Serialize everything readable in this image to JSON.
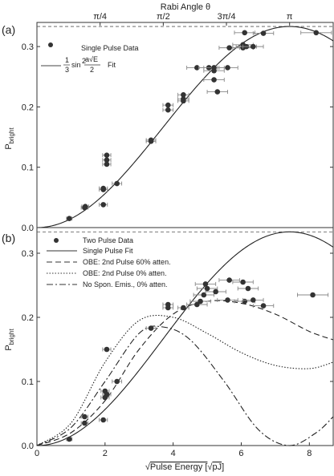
{
  "chart_data": [
    {
      "type": "scatter",
      "panel_label": "(a)",
      "top_axis": {
        "label": "Rabi Angle θ",
        "ticks": [
          {
            "x": 1.855,
            "label": "π/4"
          },
          {
            "x": 3.71,
            "label": "π/2"
          },
          {
            "x": 5.565,
            "label": "3π/4"
          },
          {
            "x": 7.42,
            "label": "π"
          }
        ]
      },
      "ylabel": "P",
      "ylabel_sub": "bright",
      "xlim": [
        0,
        8.7
      ],
      "ylim": [
        0,
        0.34
      ],
      "yticks": [
        0.0,
        0.1,
        0.2,
        0.3
      ],
      "yticks_labels": [
        "0.0",
        "0.1",
        "0.2",
        "0.3"
      ],
      "reference_line": {
        "y": 0.3333,
        "style": "dashed"
      },
      "legend": [
        {
          "label": "Single Pulse Data",
          "marker": "circle"
        },
        {
          "label_fraction_num": "1",
          "label_fraction_den": "3",
          "label_sin": "sin",
          "label_exp": "2",
          "label_arg_num": "a√E",
          "label_arg_den": "2",
          "label_tail": "Fit",
          "style": "solid"
        }
      ],
      "series": [
        {
          "name": "Single Pulse Data",
          "points": [
            {
              "x": 0.95,
              "y": 0.015,
              "xerr": 0.08
            },
            {
              "x": 1.4,
              "y": 0.033,
              "xerr": 0.1
            },
            {
              "x": 1.42,
              "y": 0.035,
              "xerr": 0.1
            },
            {
              "x": 1.95,
              "y": 0.065,
              "xerr": 0.12
            },
            {
              "x": 1.95,
              "y": 0.063,
              "xerr": 0.12
            },
            {
              "x": 1.95,
              "y": 0.038,
              "xerr": 0.12
            },
            {
              "x": 2.05,
              "y": 0.105,
              "xerr": 0.12
            },
            {
              "x": 2.05,
              "y": 0.12,
              "xerr": 0.12
            },
            {
              "x": 2.05,
              "y": 0.112,
              "xerr": 0.12
            },
            {
              "x": 2.35,
              "y": 0.073,
              "xerr": 0.14
            },
            {
              "x": 3.35,
              "y": 0.145,
              "xerr": 0.14
            },
            {
              "x": 3.35,
              "y": 0.143,
              "xerr": 0.14
            },
            {
              "x": 3.85,
              "y": 0.195,
              "xerr": 0.15
            },
            {
              "x": 3.85,
              "y": 0.203,
              "xerr": 0.15
            },
            {
              "x": 4.3,
              "y": 0.22,
              "xerr": 0.16
            },
            {
              "x": 4.3,
              "y": 0.213,
              "xerr": 0.16
            },
            {
              "x": 4.3,
              "y": 0.21,
              "xerr": 0.16
            },
            {
              "x": 4.7,
              "y": 0.265,
              "xerr": 0.3
            },
            {
              "x": 5.05,
              "y": 0.265,
              "xerr": 0.3
            },
            {
              "x": 5.2,
              "y": 0.265,
              "xerr": 0.3
            },
            {
              "x": 5.2,
              "y": 0.26,
              "xerr": 0.3
            },
            {
              "x": 5.2,
              "y": 0.245,
              "xerr": 0.3
            },
            {
              "x": 5.3,
              "y": 0.225,
              "xerr": 0.3
            },
            {
              "x": 5.6,
              "y": 0.265,
              "xerr": 0.3
            },
            {
              "x": 5.65,
              "y": 0.298,
              "xerr": 0.3
            },
            {
              "x": 6.05,
              "y": 0.298,
              "xerr": 0.3
            },
            {
              "x": 6.05,
              "y": 0.303,
              "xerr": 0.3
            },
            {
              "x": 6.15,
              "y": 0.3,
              "xerr": 0.3
            },
            {
              "x": 6.35,
              "y": 0.3,
              "xerr": 0.3
            },
            {
              "x": 6.1,
              "y": 0.323,
              "xerr": 0.3
            },
            {
              "x": 6.65,
              "y": 0.322,
              "xerr": 0.3
            },
            {
              "x": 8.2,
              "y": 0.323,
              "xerr": 0.45
            }
          ]
        },
        {
          "name": "Fit",
          "function": "(1/3) sin^2(a x / 2)",
          "a": 0.4234
        }
      ]
    },
    {
      "type": "line",
      "panel_label": "(b)",
      "xlabel": "√Pulse Energy [√pJ]",
      "xlabel_parts": {
        "root": "√",
        "main": "Pulse Energy [",
        "unit_root": "√",
        "unit": "pJ",
        "close": "]"
      },
      "ylabel": "P",
      "ylabel_sub": "bright",
      "xlim": [
        0,
        8.7
      ],
      "ylim": [
        0,
        0.34
      ],
      "xticks": [
        0,
        2,
        4,
        6,
        8
      ],
      "xticks_labels": [
        "0",
        "2",
        "4",
        "6",
        "8"
      ],
      "yticks": [
        0.0,
        0.1,
        0.2,
        0.3
      ],
      "yticks_labels": [
        "0.0",
        "0.1",
        "0.2",
        "0.3"
      ],
      "reference_line": {
        "y": 0.3333,
        "style": "dashed"
      },
      "legend": [
        {
          "label": "Two Pulse Data",
          "marker": "circle"
        },
        {
          "label": "Single Pulse Fit",
          "style": "solid"
        },
        {
          "label": "OBE: 2nd Pulse 60% atten.",
          "style": "dashed"
        },
        {
          "label": "OBE: 2nd Pulse 0% atten.",
          "style": "dotted"
        },
        {
          "label": "No Spon. Emis., 0% atten.",
          "style": "dashdot"
        }
      ],
      "series": [
        {
          "name": "Two Pulse Data",
          "points": [
            {
              "x": 0.95,
              "y": 0.01,
              "xerr": 0.08
            },
            {
              "x": 1.4,
              "y": 0.045,
              "xerr": 0.1
            },
            {
              "x": 1.4,
              "y": 0.035,
              "xerr": 0.1
            },
            {
              "x": 1.95,
              "y": 0.04,
              "xerr": 0.12
            },
            {
              "x": 2.0,
              "y": 0.075,
              "xerr": 0.12
            },
            {
              "x": 2.0,
              "y": 0.085,
              "xerr": 0.12
            },
            {
              "x": 2.05,
              "y": 0.08,
              "xerr": 0.12
            },
            {
              "x": 2.35,
              "y": 0.1,
              "xerr": 0.14
            },
            {
              "x": 2.05,
              "y": 0.15,
              "xerr": 0.12
            },
            {
              "x": 3.35,
              "y": 0.183,
              "xerr": 0.14
            },
            {
              "x": 3.85,
              "y": 0.215,
              "xerr": 0.15
            },
            {
              "x": 3.85,
              "y": 0.22,
              "xerr": 0.15
            },
            {
              "x": 4.3,
              "y": 0.215,
              "xerr": 0.16
            },
            {
              "x": 4.7,
              "y": 0.22,
              "xerr": 0.3
            },
            {
              "x": 4.8,
              "y": 0.225,
              "xerr": 0.3
            },
            {
              "x": 4.9,
              "y": 0.235,
              "xerr": 0.3
            },
            {
              "x": 4.95,
              "y": 0.252,
              "xerr": 0.3
            },
            {
              "x": 5.0,
              "y": 0.245,
              "xerr": 0.3
            },
            {
              "x": 5.25,
              "y": 0.24,
              "xerr": 0.3
            },
            {
              "x": 5.6,
              "y": 0.227,
              "xerr": 0.3
            },
            {
              "x": 5.65,
              "y": 0.258,
              "xerr": 0.3
            },
            {
              "x": 6.05,
              "y": 0.255,
              "xerr": 0.3
            },
            {
              "x": 6.1,
              "y": 0.225,
              "xerr": 0.3
            },
            {
              "x": 6.2,
              "y": 0.245,
              "xerr": 0.3
            },
            {
              "x": 6.35,
              "y": 0.227,
              "xerr": 0.3
            },
            {
              "x": 6.65,
              "y": 0.218,
              "xerr": 0.3
            },
            {
              "x": 8.1,
              "y": 0.235,
              "xerr": 0.45
            }
          ]
        },
        {
          "name": "Single Pulse Fit",
          "function": "(1/3) sin^2(a x / 2)",
          "a": 0.4234
        },
        {
          "name": "OBE: 2nd Pulse 60% atten.",
          "x": [
            0,
            1,
            2,
            3,
            4,
            5,
            6,
            7,
            8,
            8.7
          ],
          "y": [
            0,
            0.02,
            0.07,
            0.15,
            0.205,
            0.225,
            0.222,
            0.205,
            0.178,
            0.165
          ]
        },
        {
          "name": "OBE: 2nd Pulse 0% atten.",
          "x": [
            0,
            1,
            2,
            3,
            4,
            5,
            6,
            7,
            8,
            8.7
          ],
          "y": [
            0,
            0.035,
            0.13,
            0.195,
            0.2,
            0.175,
            0.145,
            0.125,
            0.12,
            0.13
          ]
        },
        {
          "name": "No Spon. Emis., 0% atten.",
          "x": [
            0,
            1,
            2,
            3,
            3.7,
            4.5,
            5.5,
            6.5,
            7.4,
            8.2,
            8.7
          ],
          "y": [
            0,
            0.028,
            0.1,
            0.175,
            0.185,
            0.165,
            0.1,
            0.025,
            0,
            0.02,
            0.045
          ]
        }
      ]
    }
  ],
  "colors": {
    "marker": "#333333",
    "line": "#222222",
    "error_bar": "#888888",
    "axis": "#333333"
  }
}
